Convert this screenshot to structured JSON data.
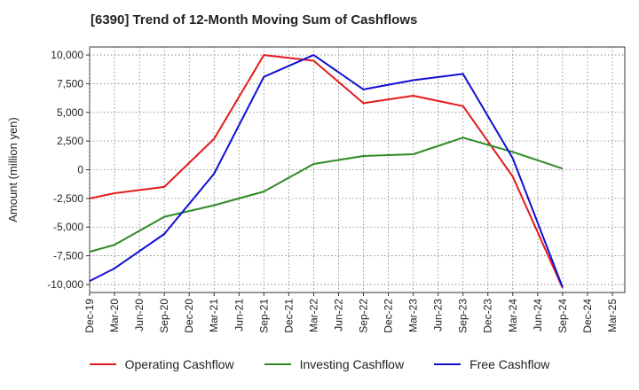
{
  "chart_data": {
    "type": "line",
    "title": "[6390]  Trend of 12-Month Moving Sum of Cashflows",
    "xlabel": "",
    "ylabel": "Amount (million yen)",
    "ylim": [
      -10700,
      10700
    ],
    "yticks": [
      10000,
      7500,
      5000,
      2500,
      0,
      -2500,
      -5000,
      -7500,
      -10000
    ],
    "ytick_labels": [
      "10,000",
      "7,500",
      "5,000",
      "2,500",
      "0",
      "-2,500",
      "-5,000",
      "-7,500",
      "-10,000"
    ],
    "categories": [
      "Dec-19",
      "Mar-20",
      "Jun-20",
      "Sep-20",
      "Dec-20",
      "Mar-21",
      "Jun-21",
      "Sep-21",
      "Dec-21",
      "Mar-22",
      "Jun-22",
      "Sep-22",
      "Dec-22",
      "Mar-23",
      "Jun-23",
      "Sep-23",
      "Dec-23",
      "Mar-24",
      "Jun-24",
      "Sep-24",
      "Dec-24",
      "Mar-25"
    ],
    "grid": true,
    "legend_position": "bottom",
    "series": [
      {
        "name": "Operating Cashflow",
        "color": "#e31a1c",
        "values": [
          -2500,
          -2050,
          null,
          -1500,
          null,
          2700,
          null,
          10000,
          null,
          9500,
          null,
          5800,
          null,
          6450,
          null,
          5550,
          null,
          -600,
          null,
          -10300,
          null,
          null
        ]
      },
      {
        "name": "Investing Cashflow",
        "color": "#2e8b22",
        "values": [
          -7150,
          -6550,
          null,
          -4100,
          null,
          -3100,
          null,
          -1900,
          null,
          500,
          null,
          1200,
          null,
          1350,
          null,
          2800,
          null,
          1550,
          null,
          100,
          null,
          null
        ]
      },
      {
        "name": "Free Cashflow",
        "color": "#1010d0",
        "values": [
          -9700,
          -8600,
          null,
          -5600,
          null,
          -350,
          null,
          8100,
          null,
          10000,
          null,
          7000,
          null,
          7800,
          null,
          8350,
          null,
          1000,
          null,
          -10250,
          null,
          null
        ]
      }
    ]
  }
}
